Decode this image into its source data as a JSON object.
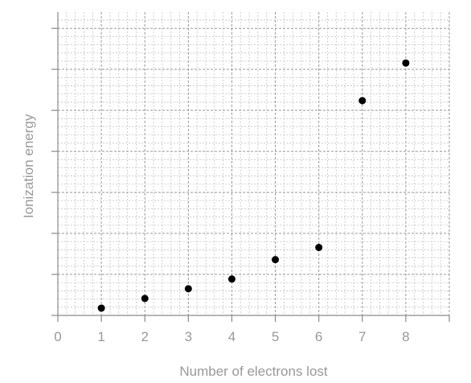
{
  "chart_data": {
    "type": "scatter",
    "title": "",
    "xlabel": "Number of electrons lost",
    "ylabel": "Ionization energy",
    "xlim": [
      0,
      9
    ],
    "ylim": [
      0,
      25
    ],
    "x_ticks": [
      "0",
      "1",
      "2",
      "3",
      "4",
      "5",
      "6",
      "7",
      "8"
    ],
    "y_ticks_labeled": false,
    "y_tick_values": [
      0,
      3.38,
      6.76,
      10.14,
      13.52,
      16.9,
      20.28,
      23.66
    ],
    "grid": true,
    "minor_grid": true,
    "minor_per_major": 5,
    "legend": "none",
    "marker_color": "#000000",
    "series": [
      {
        "x": [
          1,
          2,
          3,
          4,
          5,
          6,
          7,
          8
        ],
        "y": [
          0.6,
          1.4,
          2.2,
          3.0,
          4.6,
          5.6,
          17.7,
          20.8
        ]
      }
    ]
  }
}
